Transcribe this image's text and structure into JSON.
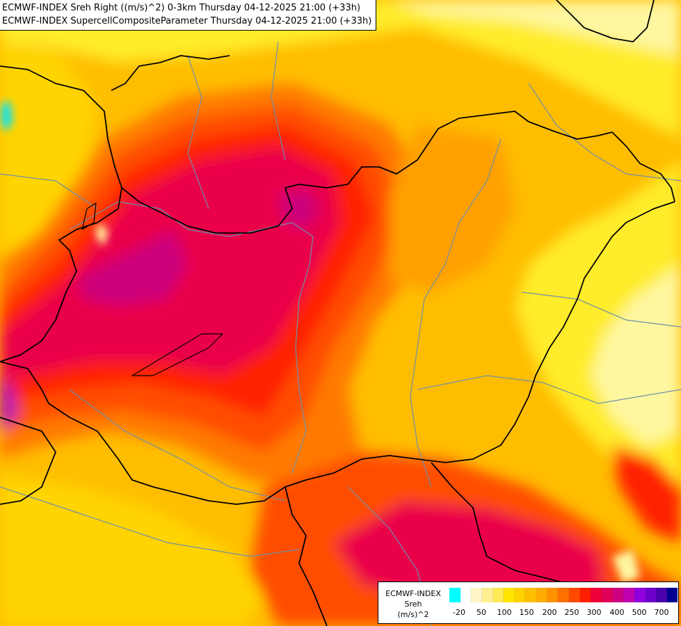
{
  "header": {
    "line1": "ECMWF-INDEX Sreh Right ((m/s)^2) 0-3km Thursday 04-12-2025 21:00 (+33h)",
    "line2": "ECMWF-INDEX SupercellCompositeParameter Thursday 04-12-2025 21:00 (+33h)"
  },
  "legend": {
    "title_line1": "ECMWF-INDEX",
    "title_line2": "Sreh",
    "title_line3": "(m/s)^2",
    "tick_labels": [
      "-20",
      "50",
      "100",
      "150",
      "200",
      "250",
      "300",
      "400",
      "500",
      "700"
    ],
    "colors": [
      "#00ffff",
      "#ffffff",
      "#fff6c8",
      "#ffee90",
      "#ffe955",
      "#ffe400",
      "#ffd200",
      "#ffbf00",
      "#ffaa00",
      "#ff9000",
      "#ff7000",
      "#ff4a00",
      "#ff1e00",
      "#f0003a",
      "#e0005a",
      "#cc0080",
      "#c000b0",
      "#9000dd",
      "#6e00cc",
      "#4a00aa",
      "#000090"
    ]
  },
  "map": {
    "field_colors": {
      "pale": "#fff7a0",
      "yellow": "#ffec2a",
      "gold": "#ffd400",
      "amber": "#ffbd00",
      "orange": "#ffa000",
      "dark_orange": "#ff7a00",
      "red_orange": "#ff4d00",
      "red": "#ff2000",
      "crimson": "#ea0048",
      "magenta": "#cc007c",
      "purple": "#b200b8",
      "cyan": "#00e5ff"
    },
    "border_color": "#000000",
    "river_color": "#6f8fa8"
  }
}
